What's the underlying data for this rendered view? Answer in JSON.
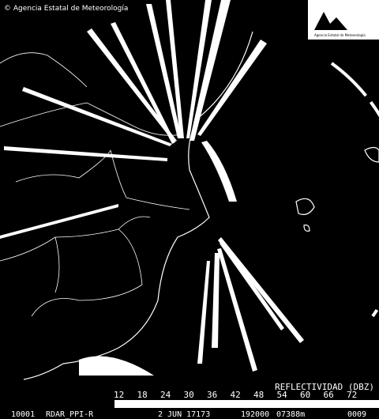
{
  "header": {
    "credit": "© Agencia Estatal de Meteorología",
    "logo_text": "Agencia Estatal de Meteorología"
  },
  "legend": {
    "title": "REFLECTIVIDAD (DBZ)",
    "ticks": [
      12,
      18,
      24,
      30,
      36,
      42,
      48,
      54,
      60,
      66,
      72
    ]
  },
  "footer": {
    "station": "10001",
    "product": "RDAR_PPI-R",
    "date": "2 JUN 17173",
    "time": "192000",
    "code": "07388m",
    "extra": "0009"
  }
}
